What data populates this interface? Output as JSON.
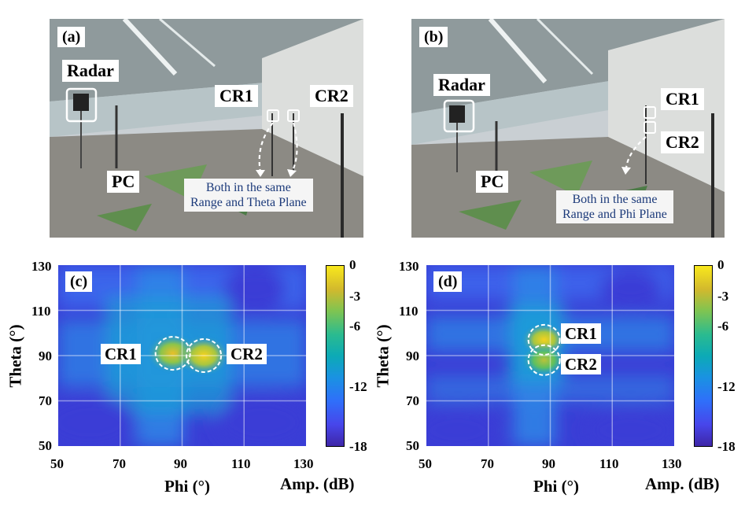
{
  "panels": {
    "a": {
      "tag": "(a)",
      "labels": {
        "radar": "Radar",
        "pc": "PC",
        "cr1": "CR1",
        "cr2": "CR2"
      },
      "note_line1": "Both in the same",
      "note_line2": "Range and Theta Plane"
    },
    "b": {
      "tag": "(b)",
      "labels": {
        "radar": "Radar",
        "pc": "PC",
        "cr1": "CR1",
        "cr2": "CR2"
      },
      "note_line1": "Both in the same",
      "note_line2": "Range and Phi Plane"
    },
    "c": {
      "tag": "(c)",
      "labels": {
        "cr1": "CR1",
        "cr2": "CR2"
      }
    },
    "d": {
      "tag": "(d)",
      "labels": {
        "cr1": "CR1",
        "cr2": "CR2"
      }
    }
  },
  "chart_data": [
    {
      "type": "heatmap",
      "panel": "(c)",
      "xlabel": "Phi (°)",
      "ylabel": "Theta (°)",
      "xlim": [
        50,
        130
      ],
      "ylim": [
        50,
        130
      ],
      "xticks": [
        "50",
        "70",
        "90",
        "110",
        "130"
      ],
      "yticks": [
        "130",
        "110",
        "90",
        "70",
        "50"
      ],
      "grid": true,
      "colorbar": {
        "label": "Amp. (dB)",
        "ticks": [
          "0",
          "-3",
          "-6",
          "-12",
          "-18"
        ],
        "range": [
          -18,
          0
        ]
      },
      "peaks": [
        {
          "name": "CR1",
          "phi": 87,
          "theta": 91,
          "amp_db": -3
        },
        {
          "name": "CR2",
          "phi": 97,
          "theta": 90,
          "amp_db": -2
        }
      ]
    },
    {
      "type": "heatmap",
      "panel": "(d)",
      "xlabel": "Phi (°)",
      "ylabel": "Theta (°)",
      "xlim": [
        50,
        130
      ],
      "ylim": [
        50,
        130
      ],
      "xticks": [
        "50",
        "70",
        "90",
        "110",
        "130"
      ],
      "yticks": [
        "130",
        "110",
        "90",
        "70",
        "50"
      ],
      "grid": true,
      "colorbar": {
        "label": "Amp. (dB)",
        "ticks": [
          "0",
          "-3",
          "-6",
          "-12",
          "-18"
        ],
        "range": [
          -18,
          0
        ]
      },
      "peaks": [
        {
          "name": "CR1",
          "phi": 88,
          "theta": 97,
          "amp_db": -2
        },
        {
          "name": "CR2",
          "phi": 88,
          "theta": 88,
          "amp_db": -5
        }
      ]
    }
  ]
}
